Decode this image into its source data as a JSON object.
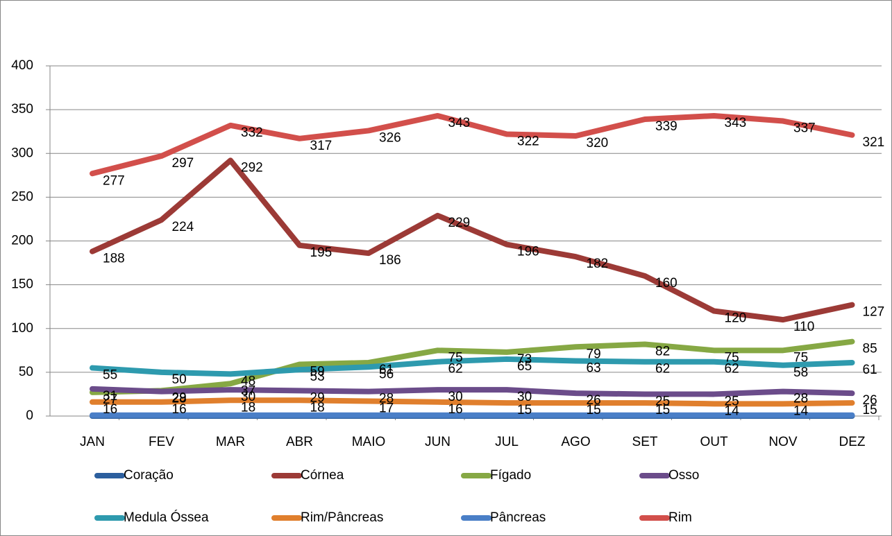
{
  "chart_data": {
    "type": "line",
    "categories": [
      "JAN",
      "FEV",
      "MAR",
      "ABR",
      "MAIO",
      "JUN",
      "JUL",
      "AGO",
      "SET",
      "OUT",
      "NOV",
      "DEZ"
    ],
    "ylim": [
      0,
      400
    ],
    "yticks": [
      0,
      50,
      100,
      150,
      200,
      250,
      300,
      350,
      400
    ],
    "grid": true,
    "legend": "bottom",
    "series": [
      {
        "name": "Coração",
        "color": "#2c5f9e",
        "values": [
          0,
          0,
          0,
          0,
          0,
          0,
          0,
          0,
          0,
          0,
          0,
          0
        ],
        "data_labels": false
      },
      {
        "name": "Córnea",
        "color": "#9c3a36",
        "values": [
          188,
          224,
          292,
          195,
          186,
          229,
          196,
          182,
          160,
          120,
          110,
          127
        ],
        "data_labels": true
      },
      {
        "name": "Fígado",
        "color": "#86a844",
        "values": [
          27,
          29,
          37,
          59,
          61,
          75,
          73,
          79,
          82,
          75,
          75,
          85
        ],
        "data_labels": true
      },
      {
        "name": "Osso",
        "color": "#6b4c8a",
        "values": [
          31,
          28,
          30,
          29,
          28,
          30,
          30,
          26,
          25,
          25,
          28,
          26
        ],
        "data_labels": true
      },
      {
        "name": "Medula Óssea",
        "color": "#2e9aae",
        "values": [
          55,
          50,
          48,
          53,
          56,
          62,
          65,
          63,
          62,
          62,
          58,
          61
        ],
        "data_labels": true
      },
      {
        "name": "Rim/Pâncreas",
        "color": "#e07f2d",
        "values": [
          16,
          16,
          18,
          18,
          17,
          16,
          15,
          15,
          15,
          14,
          14,
          15
        ],
        "data_labels": true
      },
      {
        "name": "Pâncreas",
        "color": "#4a7fc7",
        "values": [
          1,
          1,
          1,
          1,
          1,
          1,
          1,
          1,
          1,
          1,
          1,
          1
        ],
        "data_labels": false
      },
      {
        "name": "Rim",
        "color": "#d24f4b",
        "values": [
          277,
          297,
          332,
          317,
          326,
          343,
          322,
          320,
          339,
          343,
          337,
          321
        ],
        "data_labels": true
      }
    ]
  }
}
